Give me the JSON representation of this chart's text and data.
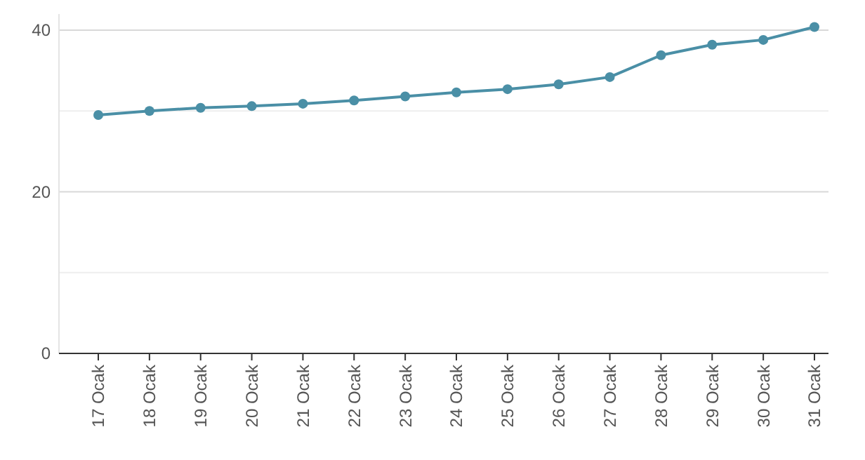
{
  "chart_data": {
    "type": "line",
    "categories": [
      "17 Ocak",
      "18 Ocak",
      "19 Ocak",
      "20 Ocak",
      "21 Ocak",
      "22 Ocak",
      "23 Ocak",
      "24 Ocak",
      "25 Ocak",
      "26 Ocak",
      "27 Ocak",
      "28 Ocak",
      "29 Ocak",
      "30 Ocak",
      "31 Ocak"
    ],
    "series": [
      {
        "color": "#4a8fa6",
        "values": [
          29.5,
          30.0,
          30.4,
          30.6,
          30.9,
          31.3,
          31.8,
          32.3,
          32.7,
          33.3,
          34.2,
          36.9,
          38.2,
          38.8,
          40.4
        ]
      }
    ],
    "ylim": [
      0,
      42
    ],
    "yticks": [
      0,
      {
        "value": 10,
        "label": null
      },
      20,
      {
        "value": 30,
        "label": null
      },
      40
    ],
    "grid": "y",
    "marker": "circle",
    "line_style": "solid"
  }
}
